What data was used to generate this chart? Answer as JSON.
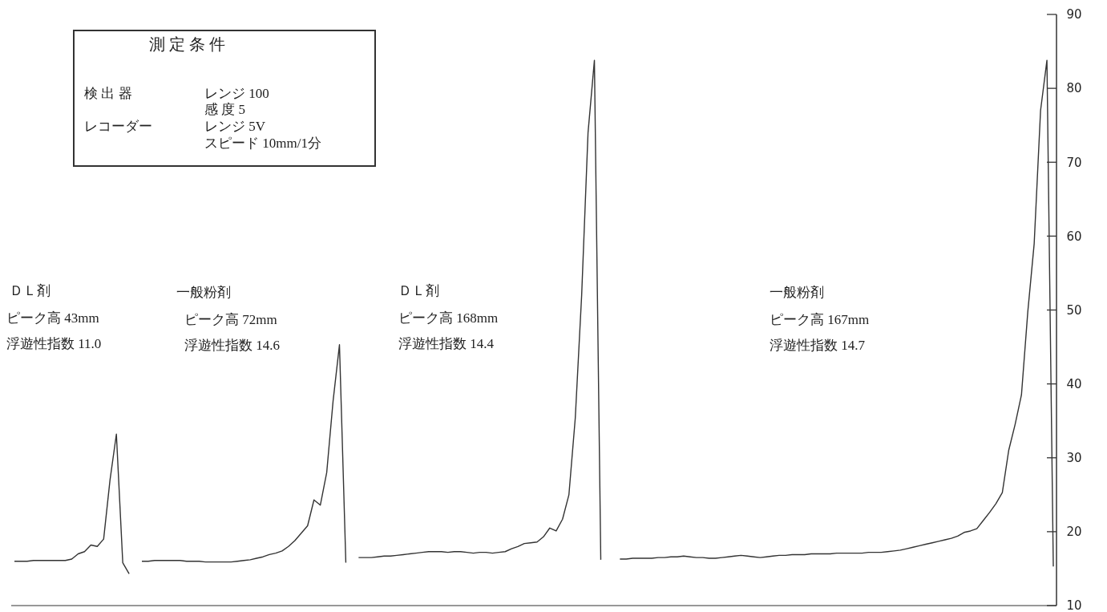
{
  "chart_data": {
    "type": "line",
    "tick_labels": "y",
    "categories": [
      null,
      null,
      null,
      null,
      null,
      null,
      null,
      null,
      null,
      null,
      null,
      null,
      null,
      null,
      null,
      null,
      null,
      null,
      null,
      null,
      null,
      null,
      null,
      null,
      null,
      null,
      null,
      null,
      null,
      null,
      null,
      null,
      null,
      null,
      null,
      null,
      null,
      null,
      null,
      null,
      null,
      null,
      null,
      null,
      null,
      null,
      null,
      null,
      null,
      null,
      null,
      null,
      null,
      null,
      null,
      null,
      null,
      null,
      null,
      null,
      null,
      null,
      null,
      null,
      null,
      null,
      null,
      null,
      null,
      null,
      null,
      null,
      null,
      null,
      null,
      null,
      null,
      null,
      null,
      null,
      null,
      null,
      null,
      null,
      null,
      null,
      null,
      null,
      null,
      null,
      null,
      null,
      null,
      null,
      null,
      null,
      null,
      null,
      null,
      null,
      null,
      null,
      null,
      null,
      null,
      null,
      null,
      null,
      null,
      null,
      null,
      null,
      null,
      null,
      null,
      null,
      null,
      null,
      null,
      null,
      null,
      null,
      null,
      null,
      null,
      null,
      null,
      null,
      null,
      null,
      null,
      null,
      null,
      null,
      null,
      null,
      null,
      null,
      null,
      null,
      null,
      null,
      null,
      null,
      null,
      null,
      null,
      null,
      null,
      null,
      null,
      null,
      null,
      null,
      null,
      null,
      null,
      null,
      null,
      null,
      null,
      null,
      null,
      null
    ],
    "series": [
      {
        "color": "#333333",
        "values": [
          16.0,
          16.0,
          16.0,
          16.1,
          16.1,
          16.1,
          16.1,
          16.1,
          16.1,
          16.3,
          17.0,
          17.3,
          18.2,
          18.0,
          19.0,
          27.0,
          33.2,
          15.8,
          14.3,
          null,
          null,
          null,
          null,
          null,
          null,
          null,
          null,
          null,
          null,
          null,
          null,
          null,
          null,
          null,
          null,
          null,
          null,
          null,
          null,
          null,
          null,
          null,
          null,
          null,
          null,
          null,
          null,
          null,
          null,
          null,
          null,
          null,
          null,
          null,
          null,
          null,
          null,
          null,
          null,
          null,
          null,
          null,
          null,
          null,
          null,
          null,
          null,
          null,
          null,
          null,
          null,
          null,
          null,
          null,
          null,
          null,
          null,
          null,
          null,
          null,
          null,
          null,
          null,
          null,
          null,
          null,
          null,
          null,
          null,
          null,
          null,
          null,
          null,
          null,
          null,
          null,
          null,
          null,
          null,
          null,
          null,
          null,
          null,
          null,
          null,
          null,
          null,
          null,
          null,
          null,
          null,
          null,
          null,
          null,
          null,
          null,
          null,
          null,
          null,
          null,
          null,
          null,
          null,
          null,
          null,
          null,
          null,
          null,
          null,
          null,
          null,
          null,
          null,
          null,
          null,
          null,
          null,
          null,
          null,
          null,
          null,
          null,
          null,
          null,
          null,
          null,
          null,
          null,
          null,
          null,
          null,
          null,
          null,
          null,
          null,
          null,
          null,
          null,
          null,
          null,
          null,
          null,
          null,
          null
        ]
      },
      {
        "color": "#333333",
        "values": [
          null,
          null,
          null,
          null,
          null,
          null,
          null,
          null,
          null,
          null,
          null,
          null,
          null,
          null,
          null,
          null,
          null,
          null,
          null,
          null,
          16.0,
          16.0,
          16.1,
          16.1,
          16.1,
          16.1,
          16.1,
          16.0,
          16.0,
          16.0,
          15.9,
          15.9,
          15.9,
          15.9,
          15.9,
          16.0,
          16.1,
          16.2,
          16.4,
          16.6,
          16.9,
          17.1,
          17.4,
          18.0,
          18.8,
          19.8,
          20.8,
          24.3,
          23.6,
          28.0,
          37.7,
          45.3,
          15.8,
          null,
          null,
          null,
          null,
          null,
          null,
          null,
          null,
          null,
          null,
          null,
          null,
          null,
          null,
          null,
          null,
          null,
          null,
          null,
          null,
          null,
          null,
          null,
          null,
          null,
          null,
          null,
          null,
          null,
          null,
          null,
          null,
          null,
          null,
          null,
          null,
          null,
          null,
          null,
          null,
          null,
          null,
          null,
          null,
          null,
          null,
          null,
          null,
          null,
          null,
          null,
          null,
          null,
          null,
          null,
          null,
          null,
          null,
          null,
          null,
          null,
          null,
          null,
          null,
          null,
          null,
          null,
          null,
          null,
          null,
          null,
          null,
          null,
          null,
          null,
          null,
          null,
          null,
          null,
          null,
          null,
          null,
          null,
          null,
          null,
          null,
          null,
          null,
          null,
          null,
          null,
          null,
          null,
          null,
          null,
          null,
          null,
          null,
          null,
          null,
          null,
          null,
          null,
          null,
          null,
          null,
          null,
          null,
          null,
          null,
          null
        ]
      },
      {
        "color": "#333333",
        "values": [
          null,
          null,
          null,
          null,
          null,
          null,
          null,
          null,
          null,
          null,
          null,
          null,
          null,
          null,
          null,
          null,
          null,
          null,
          null,
          null,
          null,
          null,
          null,
          null,
          null,
          null,
          null,
          null,
          null,
          null,
          null,
          null,
          null,
          null,
          null,
          null,
          null,
          null,
          null,
          null,
          null,
          null,
          null,
          null,
          null,
          null,
          null,
          null,
          null,
          null,
          null,
          null,
          null,
          null,
          16.5,
          16.5,
          16.5,
          16.6,
          16.7,
          16.7,
          16.8,
          16.9,
          17.0,
          17.1,
          17.2,
          17.3,
          17.3,
          17.3,
          17.2,
          17.3,
          17.3,
          17.2,
          17.1,
          17.2,
          17.2,
          17.1,
          17.2,
          17.3,
          17.7,
          18.0,
          18.4,
          18.5,
          18.6,
          19.3,
          20.5,
          20.1,
          21.7,
          25.0,
          35.4,
          52,
          74,
          83.8,
          16.2,
          null,
          null,
          null,
          null,
          null,
          null,
          null,
          null,
          null,
          null,
          null,
          null,
          null,
          null,
          null,
          null,
          null,
          null,
          null,
          null,
          null,
          null,
          null,
          null,
          null,
          null,
          null,
          null,
          null,
          null,
          null,
          null,
          null,
          null,
          null,
          null,
          null,
          null,
          null,
          null,
          null,
          null,
          null,
          null,
          null,
          null,
          null,
          null,
          null,
          null,
          null,
          null,
          null,
          null,
          null,
          null,
          null,
          null,
          null,
          null,
          null,
          null,
          null,
          null,
          null,
          null,
          null,
          null,
          null,
          null,
          null
        ]
      },
      {
        "color": "#333333",
        "values": [
          null,
          null,
          null,
          null,
          null,
          null,
          null,
          null,
          null,
          null,
          null,
          null,
          null,
          null,
          null,
          null,
          null,
          null,
          null,
          null,
          null,
          null,
          null,
          null,
          null,
          null,
          null,
          null,
          null,
          null,
          null,
          null,
          null,
          null,
          null,
          null,
          null,
          null,
          null,
          null,
          null,
          null,
          null,
          null,
          null,
          null,
          null,
          null,
          null,
          null,
          null,
          null,
          null,
          null,
          null,
          null,
          null,
          null,
          null,
          null,
          null,
          null,
          null,
          null,
          null,
          null,
          null,
          null,
          null,
          null,
          null,
          null,
          null,
          null,
          null,
          null,
          null,
          null,
          null,
          null,
          null,
          null,
          null,
          null,
          null,
          null,
          null,
          null,
          null,
          null,
          null,
          null,
          null,
          null,
          null,
          16.3,
          16.3,
          16.4,
          16.4,
          16.4,
          16.4,
          16.5,
          16.5,
          16.6,
          16.6,
          16.7,
          16.6,
          16.5,
          16.5,
          16.4,
          16.4,
          16.5,
          16.6,
          16.7,
          16.8,
          16.7,
          16.6,
          16.5,
          16.6,
          16.7,
          16.8,
          16.8,
          16.9,
          16.9,
          16.9,
          17.0,
          17.0,
          17.0,
          17.0,
          17.1,
          17.1,
          17.1,
          17.1,
          17.1,
          17.2,
          17.2,
          17.2,
          17.3,
          17.4,
          17.5,
          17.7,
          17.9,
          18.1,
          18.3,
          18.5,
          18.7,
          18.9,
          19.1,
          19.4,
          19.9,
          20.1,
          20.4,
          21.5,
          22.6,
          23.8,
          25.3,
          31.0,
          34.5,
          38.5,
          49.8,
          59,
          77,
          83.8,
          15.3
        ]
      }
    ],
    "ylim": [
      10,
      90
    ],
    "yticks": [
      10,
      20,
      30,
      40,
      50,
      60,
      70,
      80,
      90
    ],
    "annotations": [
      "測 定 条 件",
      "検 出 器",
      "レンジ 100",
      "感 度 5",
      "レコーダー",
      "レンジ 5V",
      "スピード 10mm/1分",
      "ＤＬ剤",
      "ピーク高 43mm",
      "浮遊性指数 11.0",
      "一般粉剤",
      "ピーク高 72mm",
      "浮遊性指数 14.6",
      "ＤＬ剤",
      "ピーク高 168mm",
      "浮遊性指数 14.4",
      "一般粉剤",
      "ピーク高 167mm",
      "浮遊性指数 14.7"
    ]
  }
}
